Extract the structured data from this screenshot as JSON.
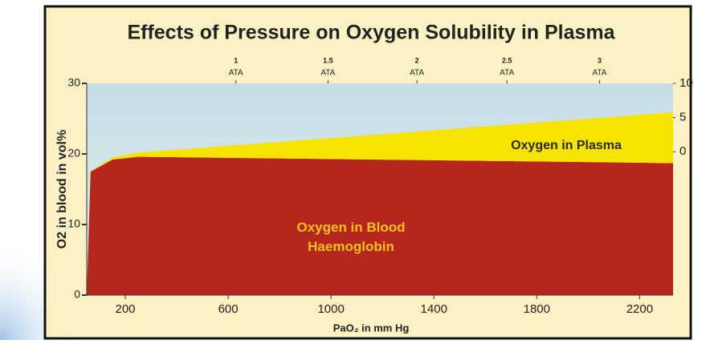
{
  "chart_data": {
    "type": "stacked_area",
    "title": "Effects of Pressure on Oxygen Solubility in Plasma",
    "x_label": "PaO₂ in mm Hg",
    "y_label": "O2 in blood in vol%",
    "x": [
      50,
      65,
      150,
      250,
      2330
    ],
    "series": [
      {
        "name": "Oxygen in Blood Haemoglobin",
        "color": "#b5271d",
        "label_color": "#f3c21c",
        "values": [
          0,
          17.5,
          19.2,
          19.6,
          18.7
        ]
      },
      {
        "name": "Oxygen in Plasma",
        "color": "#f6e400",
        "label_color": "#2a2a2a",
        "values": [
          0,
          0,
          0.3,
          0.6,
          7.2
        ]
      }
    ],
    "xlim": [
      50,
      2330
    ],
    "xticks": [
      200,
      600,
      1000,
      1400,
      1800,
      2200
    ],
    "ylim": [
      0,
      30
    ],
    "yticks": [
      0,
      10,
      20,
      30
    ],
    "y2lim": [
      -21,
      10
    ],
    "y2ticks": [
      0,
      5,
      10
    ],
    "top_ticks": [
      {
        "value": 630,
        "label": "1",
        "unit": "ATA"
      },
      {
        "value": 988,
        "label": "1.5",
        "unit": "ATA"
      },
      {
        "value": 1334,
        "label": "2",
        "unit": "ATA"
      },
      {
        "value": 1684,
        "label": "2.5",
        "unit": "ATA"
      },
      {
        "value": 2044,
        "label": "3",
        "unit": "ATA"
      }
    ]
  }
}
